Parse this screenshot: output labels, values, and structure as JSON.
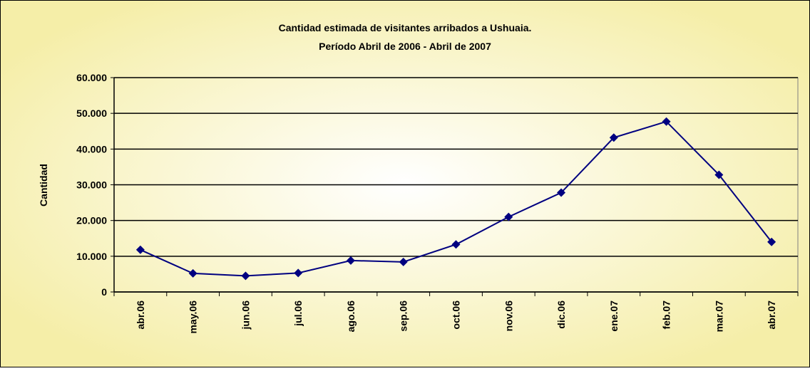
{
  "chart_data": {
    "type": "line",
    "title": "Cantidad estimada de visitantes arribados a Ushuaia.",
    "subtitle": "Período Abril de 2006 - Abril de 2007",
    "y_label": "Cantidad",
    "categories": [
      "abr.06",
      "may.06",
      "jun.06",
      "jul.06",
      "ago.06",
      "sep.06",
      "oct.06",
      "nov.06",
      "dic.06",
      "ene.07",
      "feb.07",
      "mar.07",
      "abr.07"
    ],
    "values": [
      11800,
      5200,
      4500,
      5300,
      8800,
      8400,
      13300,
      21000,
      27800,
      43200,
      47700,
      32800,
      14000
    ],
    "color": "#000080",
    "ylim": [
      0,
      60000
    ],
    "yticks": [
      0,
      {
        "value": 10000,
        "label": "10.000"
      },
      {
        "value": 20000,
        "label": "20.000"
      },
      {
        "value": 30000,
        "label": "30.000"
      },
      {
        "value": 40000,
        "label": "40.000"
      },
      {
        "value": 50000,
        "label": "50.000"
      },
      {
        "value": 60000,
        "label": "60.000"
      }
    ],
    "grid": true
  }
}
